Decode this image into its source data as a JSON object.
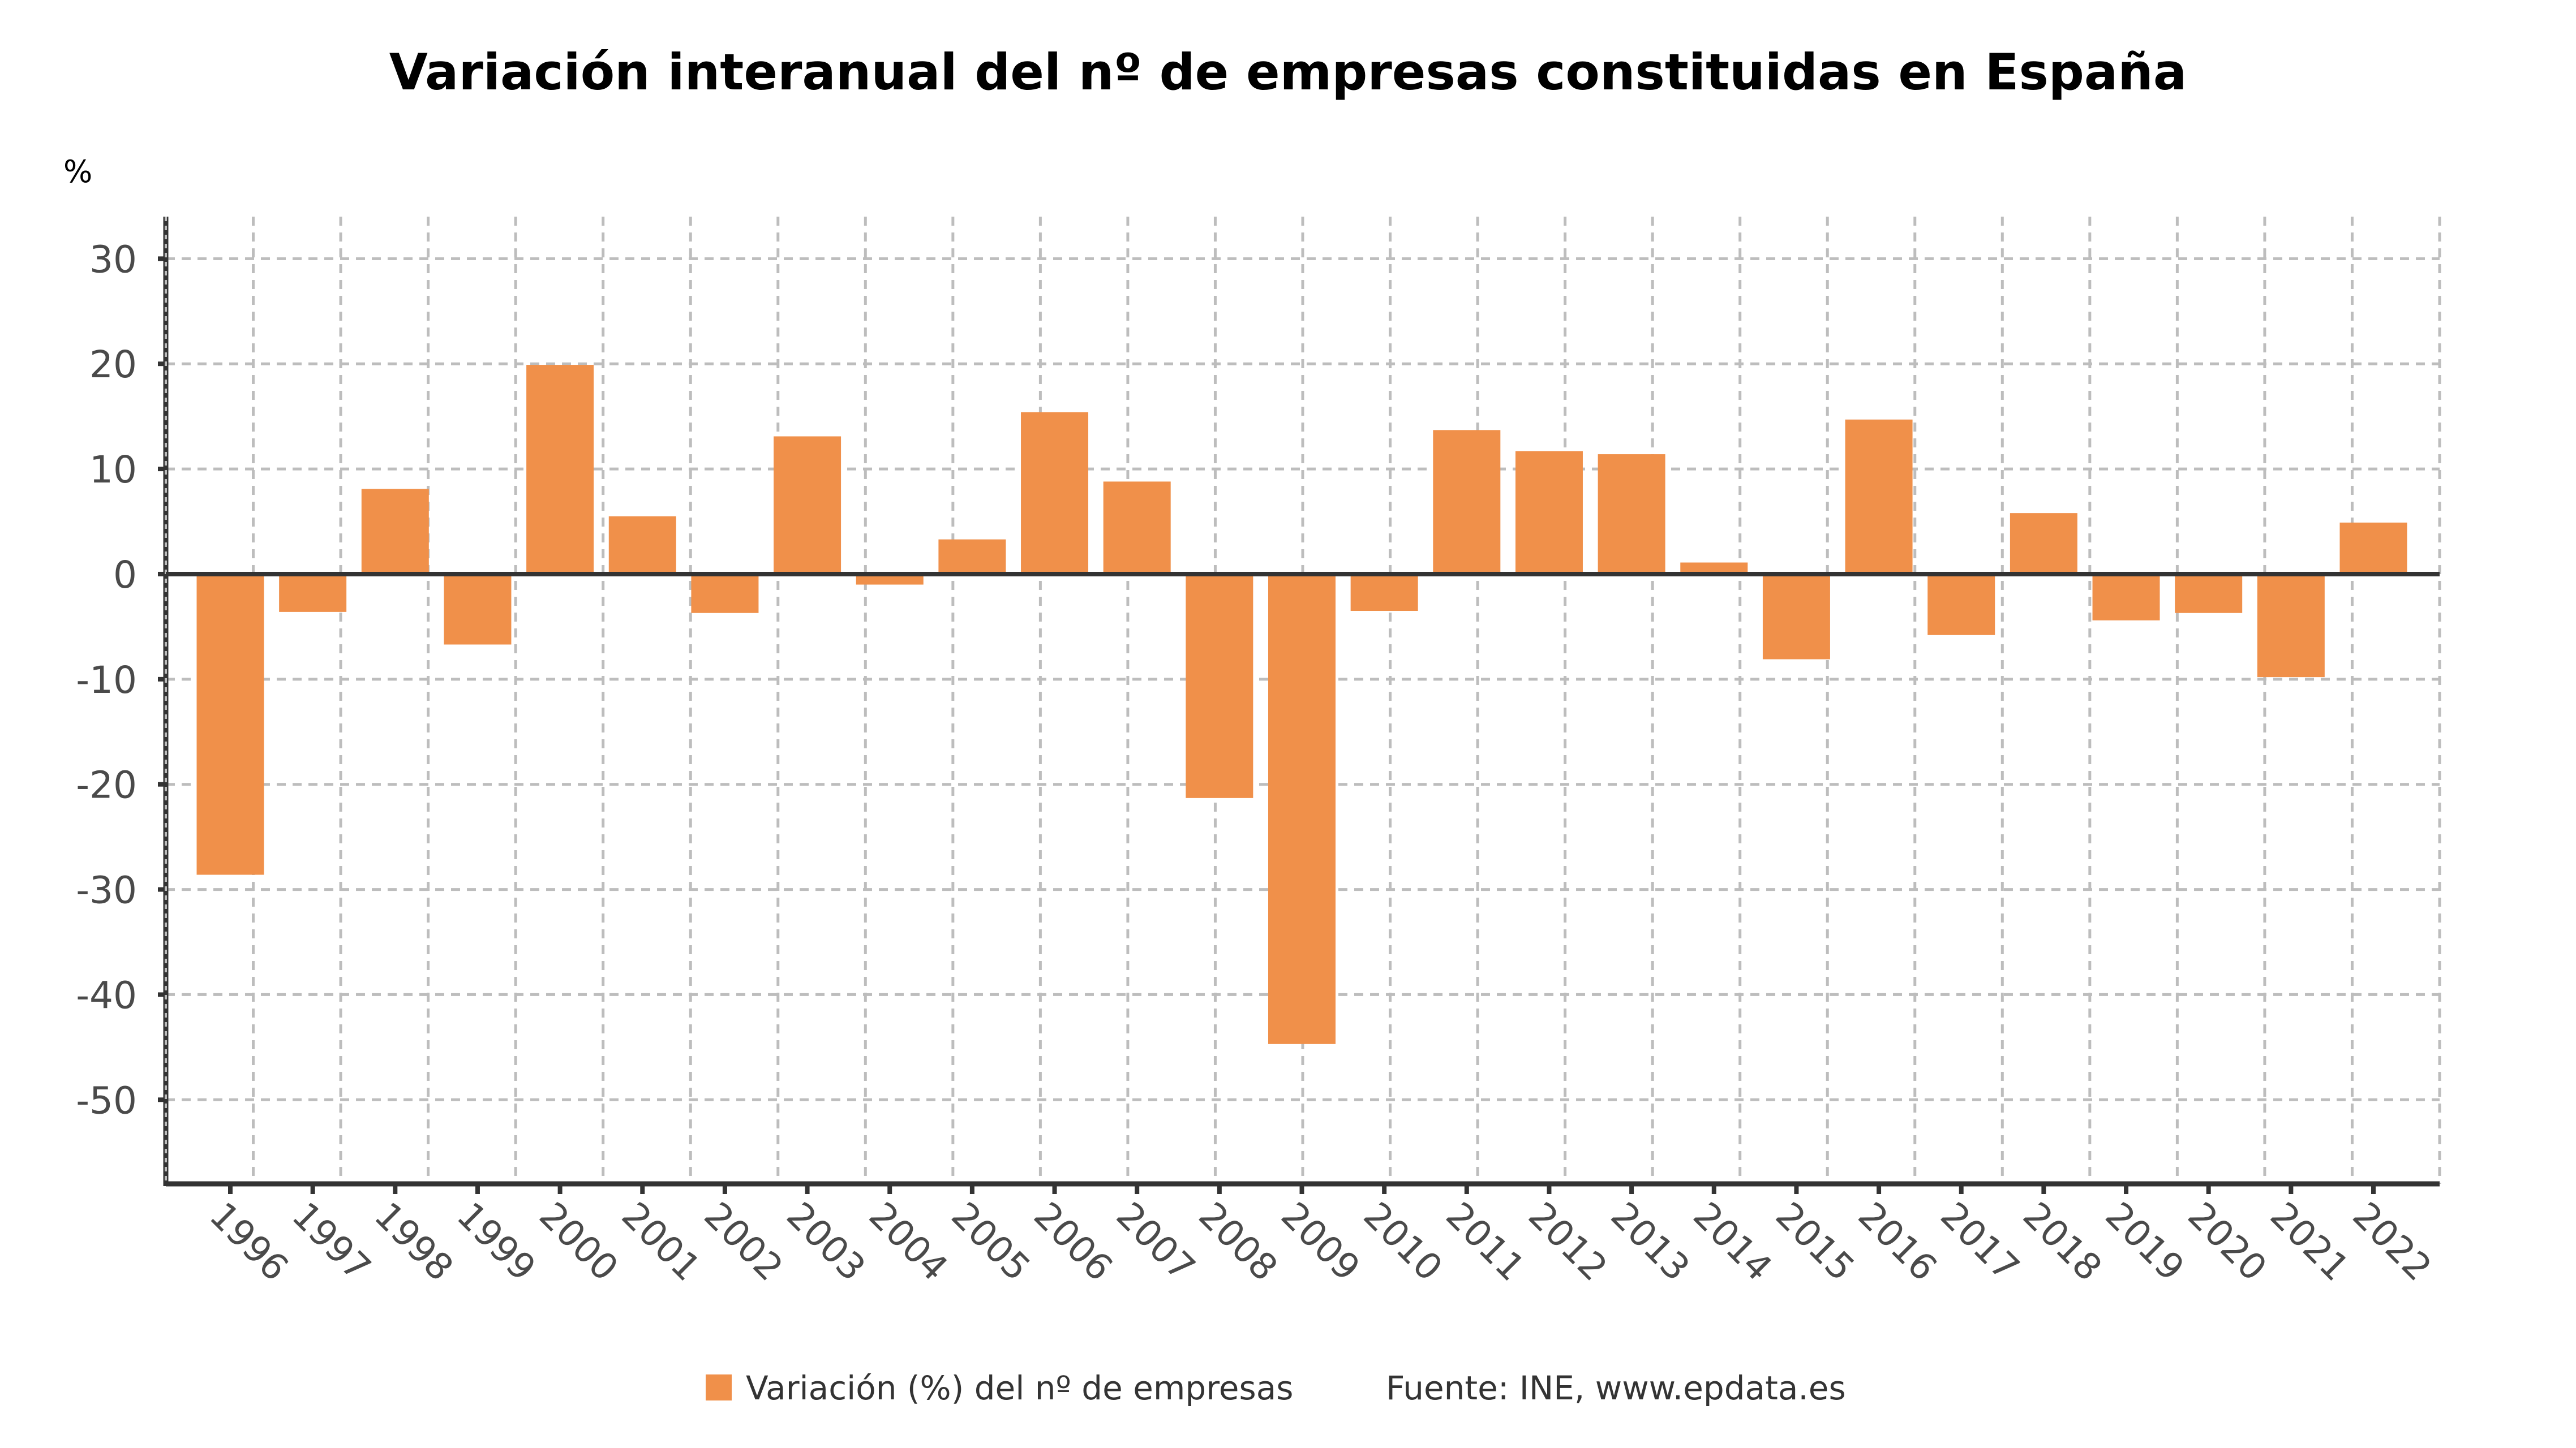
{
  "chart_data": {
    "type": "bar",
    "title": "Variación interanual del nº de empresas constituidas en España",
    "ylabel": "%",
    "xlabel": "",
    "categories": [
      "1996",
      "1997",
      "1998",
      "1999",
      "2000",
      "2001",
      "2002",
      "2003",
      "2004",
      "2005",
      "2006",
      "2007",
      "2008",
      "2009",
      "2010",
      "2011",
      "2012",
      "2013",
      "2014",
      "2015",
      "2016",
      "2017",
      "2018",
      "2019",
      "2020",
      "2021",
      "2022"
    ],
    "series": [
      {
        "name": "Variación (%) del nº de empresas",
        "color": "#F0904A",
        "values": [
          -28.6,
          -3.6,
          8.1,
          -6.7,
          19.9,
          5.5,
          -3.7,
          13.1,
          -1.0,
          3.3,
          15.4,
          8.8,
          -21.3,
          -44.7,
          -3.5,
          13.7,
          11.7,
          11.4,
          1.1,
          -8.1,
          14.7,
          -5.8,
          5.8,
          -4.4,
          -3.7,
          -9.8,
          4.9
        ]
      }
    ],
    "yticks": [
      30,
      20,
      10,
      0,
      -10,
      -20,
      -30,
      -40,
      -50
    ],
    "ylim": [
      -58,
      34
    ],
    "grid": true,
    "legend": {
      "position": "bottom-center",
      "entries": [
        "Variación (%) del nº de empresas"
      ]
    },
    "source": "Fuente: INE, www.epdata.es"
  }
}
